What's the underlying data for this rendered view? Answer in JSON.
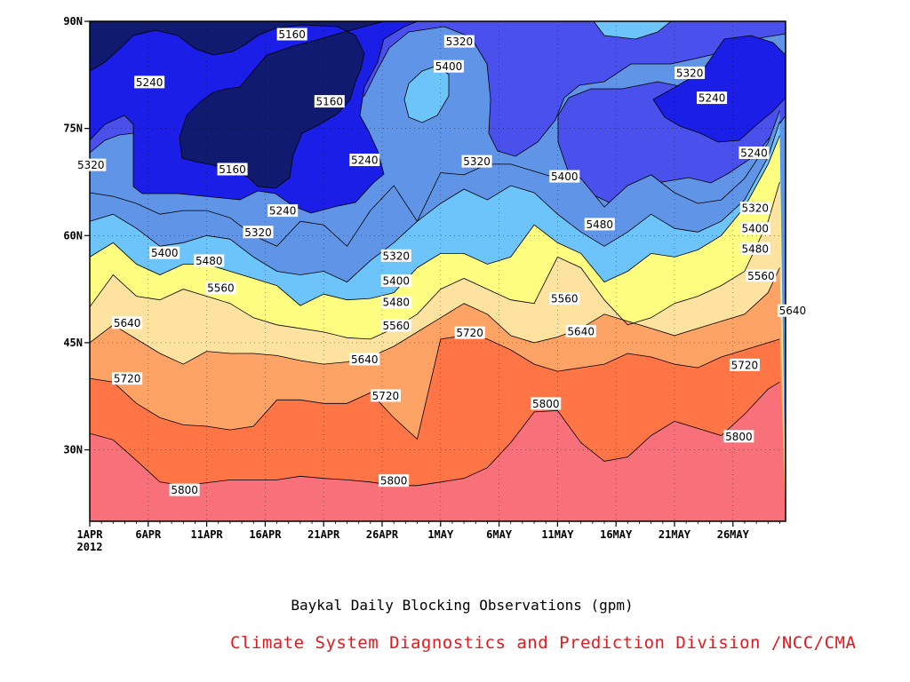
{
  "chart_data": {
    "type": "heatmap",
    "subtype": "filled-contour",
    "title": "Baykal Daily Blocking Observations (gpm)",
    "credit": "Climate System Diagnostics and Prediction Division /NCC/CMA",
    "credit_color": "#e8171f",
    "x_axis": {
      "range": [
        "1APR 2012",
        "30MAY 2012"
      ],
      "ticks": [
        "1APR",
        "6APR",
        "11APR",
        "16APR",
        "21APR",
        "26APR",
        "1MAY",
        "6MAY",
        "11MAY",
        "16MAY",
        "21MAY",
        "26MAY"
      ],
      "year_label": "2012"
    },
    "y_axis": {
      "range": [
        20,
        90
      ],
      "ticks": [
        "90N",
        "75N",
        "60N",
        "45N",
        "30N"
      ]
    },
    "grid": "dotted",
    "contour_levels": [
      5160,
      5240,
      5320,
      5400,
      5480,
      5560,
      5640,
      5720,
      5800
    ],
    "fill_colors": [
      "#101a6e",
      "#1b1ee6",
      "#4a50ec",
      "#5f94e6",
      "#6cc4fa",
      "#fefe80",
      "#fee3a0",
      "#fea366",
      "#ff7546",
      "#f7707a"
    ],
    "boundary_latitudes": {
      "days": [
        0,
        2,
        4,
        6,
        8,
        10,
        12,
        14,
        16,
        18,
        20,
        22,
        24,
        26,
        28,
        30,
        32,
        34,
        36,
        38,
        40,
        42,
        44,
        46,
        48,
        50,
        52,
        54,
        56,
        58,
        59
      ],
      "c5800": [
        32.3,
        31.4,
        28.5,
        25.5,
        25,
        25.4,
        25.8,
        25.8,
        25.8,
        26.3,
        26,
        25.8,
        25.5,
        25,
        25,
        25.5,
        26,
        27.5,
        31,
        35.3,
        35.5,
        31,
        28.4,
        29,
        32,
        34,
        33,
        32,
        35,
        38.5,
        39.5
      ],
      "c5720": [
        40,
        39.5,
        36.5,
        34.5,
        33.5,
        33.3,
        32.8,
        33.3,
        37,
        37,
        36.5,
        36.5,
        38,
        34.5,
        31.5,
        45.5,
        46,
        45.5,
        44,
        42,
        41,
        41.5,
        42,
        43.5,
        43,
        42,
        41.5,
        43,
        44,
        45,
        45.5
      ],
      "c5640": [
        45,
        47.5,
        45.5,
        43.5,
        42,
        43.8,
        43.5,
        43.5,
        43.2,
        42.5,
        42,
        42.3,
        43,
        44.5,
        46.5,
        48.5,
        50.5,
        49,
        46,
        45,
        45.8,
        47,
        49,
        48,
        47,
        46,
        47,
        48,
        49,
        52,
        55.5
      ],
      "c5560": [
        50,
        54.5,
        51.5,
        51,
        52.5,
        51.5,
        50.5,
        48.5,
        47.5,
        47,
        46.5,
        45.7,
        45.5,
        47,
        49,
        52.5,
        54,
        52.5,
        51,
        50.5,
        57,
        55.5,
        51,
        47.5,
        48.5,
        50.5,
        51.5,
        53,
        55,
        62,
        67.5
      ],
      "c5480": [
        57,
        59,
        56,
        54.5,
        56,
        56,
        55,
        54,
        53,
        50.2,
        51.8,
        51,
        51.2,
        52,
        55.5,
        57.5,
        57.5,
        56,
        57,
        61.5,
        59,
        57.5,
        53.5,
        55,
        57.5,
        57,
        58,
        60,
        64,
        70,
        74
      ],
      "c5400": [
        62,
        63,
        61,
        58.5,
        59,
        60,
        59.5,
        57,
        55,
        54.5,
        55,
        53.5,
        56.5,
        59,
        62,
        64.5,
        66.5,
        65,
        67,
        66,
        63,
        60.5,
        58.5,
        60.5,
        63,
        61,
        60.5,
        62,
        65,
        71,
        76
      ],
      "c5320": [
        66,
        65.5,
        64.5,
        63,
        63.5,
        63.5,
        62.5,
        60,
        58.5,
        62,
        61.5,
        58.5,
        63.5,
        67,
        62,
        68.8,
        68.5,
        70,
        70,
        69,
        68,
        68,
        64,
        67,
        68.5,
        66,
        64.5,
        65,
        68,
        73,
        77.5
      ]
    },
    "contour_labels": [
      {
        "text": "5160",
        "day": 17.3,
        "lat": 88.2
      },
      {
        "text": "5240",
        "day": 5.1,
        "lat": 81.5
      },
      {
        "text": "5160",
        "day": 20.5,
        "lat": 78.8
      },
      {
        "text": "5160",
        "day": 12.2,
        "lat": 69.3
      },
      {
        "text": "5240",
        "day": 23.5,
        "lat": 70.6
      },
      {
        "text": "5240",
        "day": 16.5,
        "lat": 63.5
      },
      {
        "text": "5320",
        "day": 0.1,
        "lat": 69.9
      },
      {
        "text": "5320",
        "day": 14.4,
        "lat": 60.5
      },
      {
        "text": "5320",
        "day": 31.6,
        "lat": 87.2
      },
      {
        "text": "5400",
        "day": 30.7,
        "lat": 83.7
      },
      {
        "text": "5320",
        "day": 33.1,
        "lat": 70.4
      },
      {
        "text": "5320",
        "day": 51.3,
        "lat": 82.8
      },
      {
        "text": "5240",
        "day": 53.2,
        "lat": 79.3
      },
      {
        "text": "5240",
        "day": 56.8,
        "lat": 71.6
      },
      {
        "text": "5400",
        "day": 40.6,
        "lat": 68.3
      },
      {
        "text": "5400",
        "day": 6.4,
        "lat": 57.6
      },
      {
        "text": "5480",
        "day": 10.2,
        "lat": 56.5
      },
      {
        "text": "5560",
        "day": 11.2,
        "lat": 52.7
      },
      {
        "text": "5320",
        "day": 26.2,
        "lat": 57.2
      },
      {
        "text": "5400",
        "day": 26.2,
        "lat": 53.7
      },
      {
        "text": "5480",
        "day": 26.2,
        "lat": 50.7
      },
      {
        "text": "5560",
        "day": 26.2,
        "lat": 47.4
      },
      {
        "text": "5640",
        "day": 3.2,
        "lat": 47.8
      },
      {
        "text": "5640",
        "day": 23.5,
        "lat": 42.7
      },
      {
        "text": "5720",
        "day": 3.2,
        "lat": 40.0
      },
      {
        "text": "5720",
        "day": 25.3,
        "lat": 37.6
      },
      {
        "text": "5720",
        "day": 32.5,
        "lat": 46.4
      },
      {
        "text": "5480",
        "day": 43.6,
        "lat": 61.6
      },
      {
        "text": "5560",
        "day": 40.6,
        "lat": 51.2
      },
      {
        "text": "5640",
        "day": 42.0,
        "lat": 46.6
      },
      {
        "text": "5800",
        "day": 39.0,
        "lat": 36.5
      },
      {
        "text": "5320",
        "day": 56.9,
        "lat": 63.9
      },
      {
        "text": "5400",
        "day": 56.9,
        "lat": 61.0
      },
      {
        "text": "5480",
        "day": 56.9,
        "lat": 58.2
      },
      {
        "text": "5560",
        "day": 57.4,
        "lat": 54.4
      },
      {
        "text": "5640",
        "day": 60.1,
        "lat": 49.5
      },
      {
        "text": "5720",
        "day": 56.0,
        "lat": 41.9
      },
      {
        "text": "5800",
        "day": 55.5,
        "lat": 31.9
      },
      {
        "text": "5800",
        "day": 8.1,
        "lat": 24.4
      },
      {
        "text": "5800",
        "day": 26.0,
        "lat": 25.7
      }
    ]
  }
}
